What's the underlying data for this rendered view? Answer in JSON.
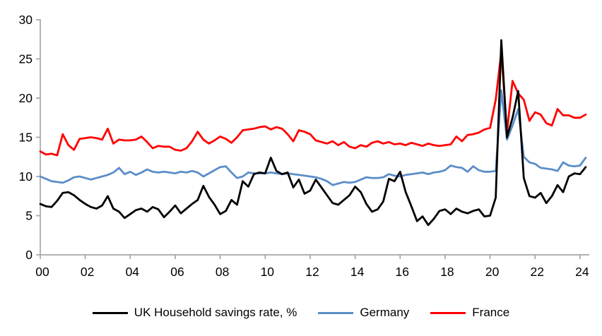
{
  "chart_data": {
    "type": "line",
    "title": "",
    "xlabel": "",
    "ylabel": "",
    "x_start": 2000,
    "x_step": 0.25,
    "frequency": "quarterly",
    "ylim": [
      0,
      30
    ],
    "y_ticks": [
      0,
      5,
      10,
      15,
      20,
      25,
      30
    ],
    "x_tick_years": [
      2000,
      2002,
      2004,
      2006,
      2008,
      2010,
      2012,
      2014,
      2016,
      2018,
      2020,
      2022,
      2024
    ],
    "x_tick_labels": [
      "00",
      "02",
      "04",
      "06",
      "08",
      "10",
      "12",
      "14",
      "16",
      "18",
      "20",
      "22",
      "24"
    ],
    "grid": false,
    "legend_position": "bottom",
    "axis_color": "#A6A6A6",
    "series": [
      {
        "name": "UK Household savings rate, %",
        "color": "#000000",
        "values": [
          6.5,
          6.2,
          6.1,
          6.9,
          7.9,
          8.0,
          7.6,
          7.0,
          6.5,
          6.1,
          5.9,
          6.3,
          7.5,
          5.9,
          5.5,
          4.7,
          5.2,
          5.7,
          5.9,
          5.5,
          6.1,
          5.8,
          4.8,
          5.5,
          6.3,
          5.3,
          5.9,
          6.5,
          7.0,
          8.8,
          7.4,
          6.4,
          5.2,
          5.6,
          7.0,
          6.4,
          9.4,
          8.7,
          10.3,
          10.5,
          10.4,
          12.4,
          10.7,
          10.3,
          10.5,
          8.6,
          9.6,
          7.8,
          8.2,
          9.6,
          8.6,
          7.6,
          6.6,
          6.4,
          7.0,
          7.6,
          8.7,
          8.0,
          6.5,
          5.5,
          5.8,
          6.8,
          9.7,
          9.4,
          10.6,
          8.0,
          6.2,
          4.3,
          4.9,
          3.8,
          4.6,
          5.6,
          5.8,
          5.2,
          5.9,
          5.5,
          5.3,
          5.6,
          5.8,
          4.9,
          5.0,
          7.3,
          27.4,
          15.0,
          17.5,
          20.9,
          9.8,
          7.5,
          7.3,
          7.9,
          6.6,
          7.5,
          8.9,
          8.0,
          10.0,
          10.4,
          10.3,
          11.2
        ]
      },
      {
        "name": "Germany",
        "color": "#5B8DC9",
        "values": [
          10.0,
          9.7,
          9.4,
          9.3,
          9.2,
          9.5,
          9.9,
          10.0,
          9.8,
          9.6,
          9.8,
          10.0,
          10.2,
          10.5,
          11.1,
          10.3,
          10.6,
          10.2,
          10.5,
          10.9,
          10.6,
          10.5,
          10.6,
          10.5,
          10.4,
          10.6,
          10.5,
          10.7,
          10.5,
          10.0,
          10.4,
          10.8,
          11.2,
          11.3,
          10.5,
          9.8,
          10.0,
          10.5,
          10.4,
          10.4,
          10.4,
          10.5,
          10.4,
          10.3,
          10.4,
          10.3,
          10.2,
          10.1,
          10.0,
          9.9,
          9.7,
          9.4,
          8.9,
          9.1,
          9.3,
          9.2,
          9.3,
          9.6,
          9.9,
          9.8,
          9.8,
          9.9,
          10.3,
          10.1,
          10.0,
          10.2,
          10.3,
          10.4,
          10.5,
          10.3,
          10.5,
          10.6,
          10.8,
          11.4,
          11.2,
          11.1,
          10.6,
          11.3,
          10.8,
          10.6,
          10.6,
          10.7,
          21.0,
          14.7,
          16.5,
          18.6,
          12.5,
          11.8,
          11.6,
          11.1,
          11.0,
          10.9,
          10.7,
          11.8,
          11.4,
          11.3,
          11.4,
          12.4
        ]
      },
      {
        "name": "France",
        "color": "#FF0000",
        "values": [
          13.2,
          12.8,
          12.9,
          12.7,
          15.4,
          14.0,
          13.4,
          14.8,
          14.9,
          15.0,
          14.9,
          14.7,
          16.1,
          14.2,
          14.7,
          14.6,
          14.6,
          14.7,
          15.1,
          14.4,
          13.6,
          13.9,
          13.8,
          13.8,
          13.4,
          13.3,
          13.6,
          14.5,
          15.7,
          14.7,
          14.2,
          14.6,
          15.1,
          14.8,
          14.3,
          15.0,
          15.9,
          16.0,
          16.1,
          16.3,
          16.4,
          16.0,
          16.3,
          16.1,
          15.4,
          14.5,
          15.9,
          15.7,
          15.4,
          14.6,
          14.4,
          14.2,
          14.5,
          14.0,
          14.4,
          13.8,
          13.6,
          14.0,
          13.8,
          14.3,
          14.5,
          14.2,
          14.4,
          14.1,
          14.2,
          14.0,
          14.3,
          14.1,
          13.9,
          14.2,
          14.0,
          13.9,
          14.0,
          14.1,
          15.1,
          14.5,
          15.3,
          15.4,
          15.6,
          16.0,
          16.2,
          19.8,
          25.9,
          15.7,
          22.2,
          20.6,
          19.8,
          17.1,
          18.2,
          17.9,
          16.8,
          16.5,
          18.6,
          17.8,
          17.8,
          17.5,
          17.5,
          17.9
        ]
      }
    ]
  }
}
